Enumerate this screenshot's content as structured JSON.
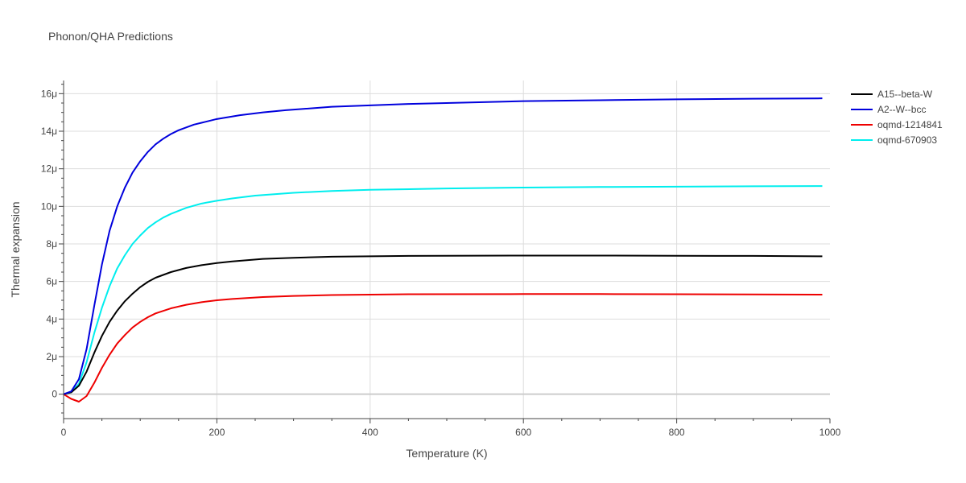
{
  "chart_data": {
    "type": "line",
    "title": "Phonon/QHA Predictions",
    "xlabel": "Temperature (K)",
    "ylabel": "Thermal expansion",
    "xlim": [
      0,
      1000
    ],
    "ylim": [
      -1.3,
      16.7
    ],
    "x_ticks": [
      0,
      200,
      400,
      600,
      800,
      1000
    ],
    "x_tick_labels": [
      "0",
      "200",
      "400",
      "600",
      "800",
      "1000"
    ],
    "y_ticks": [
      0,
      2,
      4,
      6,
      8,
      10,
      12,
      14,
      16
    ],
    "y_tick_labels": [
      "0",
      "2μ",
      "4μ",
      "6μ",
      "8μ",
      "10μ",
      "12μ",
      "14μ",
      "16μ"
    ],
    "y_unit_note": "values in units of 1e-6 per K (μ)",
    "grid": true,
    "legend_position": "top-right",
    "series": [
      {
        "name": "A15--beta-W",
        "color": "#000000",
        "x": [
          0,
          10,
          20,
          30,
          40,
          50,
          60,
          70,
          80,
          90,
          100,
          110,
          120,
          140,
          160,
          180,
          200,
          220,
          260,
          300,
          350,
          450,
          600,
          700,
          800,
          900,
          990
        ],
        "y": [
          0,
          0.1,
          0.45,
          1.2,
          2.2,
          3.1,
          3.85,
          4.45,
          4.95,
          5.35,
          5.7,
          5.98,
          6.2,
          6.5,
          6.72,
          6.87,
          6.98,
          7.07,
          7.2,
          7.26,
          7.32,
          7.36,
          7.38,
          7.38,
          7.37,
          7.36,
          7.34
        ]
      },
      {
        "name": "A2--W--bcc",
        "color": "#0000dd",
        "x": [
          0,
          10,
          20,
          30,
          40,
          50,
          60,
          70,
          80,
          90,
          100,
          110,
          120,
          130,
          140,
          150,
          160,
          170,
          180,
          200,
          230,
          260,
          290,
          350,
          450,
          600,
          700,
          800,
          900,
          990
        ],
        "y": [
          0,
          0.15,
          0.8,
          2.4,
          4.7,
          6.9,
          8.7,
          10.0,
          11.0,
          11.8,
          12.4,
          12.9,
          13.3,
          13.6,
          13.85,
          14.05,
          14.2,
          14.35,
          14.45,
          14.65,
          14.85,
          15.0,
          15.12,
          15.3,
          15.45,
          15.6,
          15.65,
          15.7,
          15.73,
          15.75
        ]
      },
      {
        "name": "oqmd-1214841",
        "color": "#ee0000",
        "x": [
          0,
          10,
          20,
          30,
          40,
          50,
          60,
          70,
          80,
          90,
          100,
          110,
          120,
          140,
          160,
          180,
          200,
          220,
          260,
          300,
          350,
          450,
          600,
          700,
          800,
          900,
          990
        ],
        "y": [
          0,
          -0.25,
          -0.4,
          -0.1,
          0.6,
          1.4,
          2.1,
          2.7,
          3.15,
          3.55,
          3.85,
          4.1,
          4.3,
          4.57,
          4.76,
          4.9,
          5.0,
          5.07,
          5.17,
          5.23,
          5.28,
          5.32,
          5.33,
          5.33,
          5.32,
          5.31,
          5.3
        ]
      },
      {
        "name": "oqmd-670903",
        "color": "#00eeee",
        "x": [
          0,
          10,
          20,
          30,
          40,
          50,
          60,
          70,
          80,
          90,
          100,
          110,
          120,
          130,
          140,
          160,
          180,
          200,
          220,
          250,
          300,
          350,
          400,
          500,
          600,
          700,
          800,
          900,
          990
        ],
        "y": [
          0,
          0.1,
          0.55,
          1.7,
          3.25,
          4.6,
          5.75,
          6.7,
          7.4,
          8.0,
          8.45,
          8.85,
          9.15,
          9.4,
          9.6,
          9.92,
          10.15,
          10.3,
          10.42,
          10.57,
          10.72,
          10.82,
          10.88,
          10.95,
          11.0,
          11.03,
          11.05,
          11.07,
          11.08
        ]
      }
    ]
  }
}
